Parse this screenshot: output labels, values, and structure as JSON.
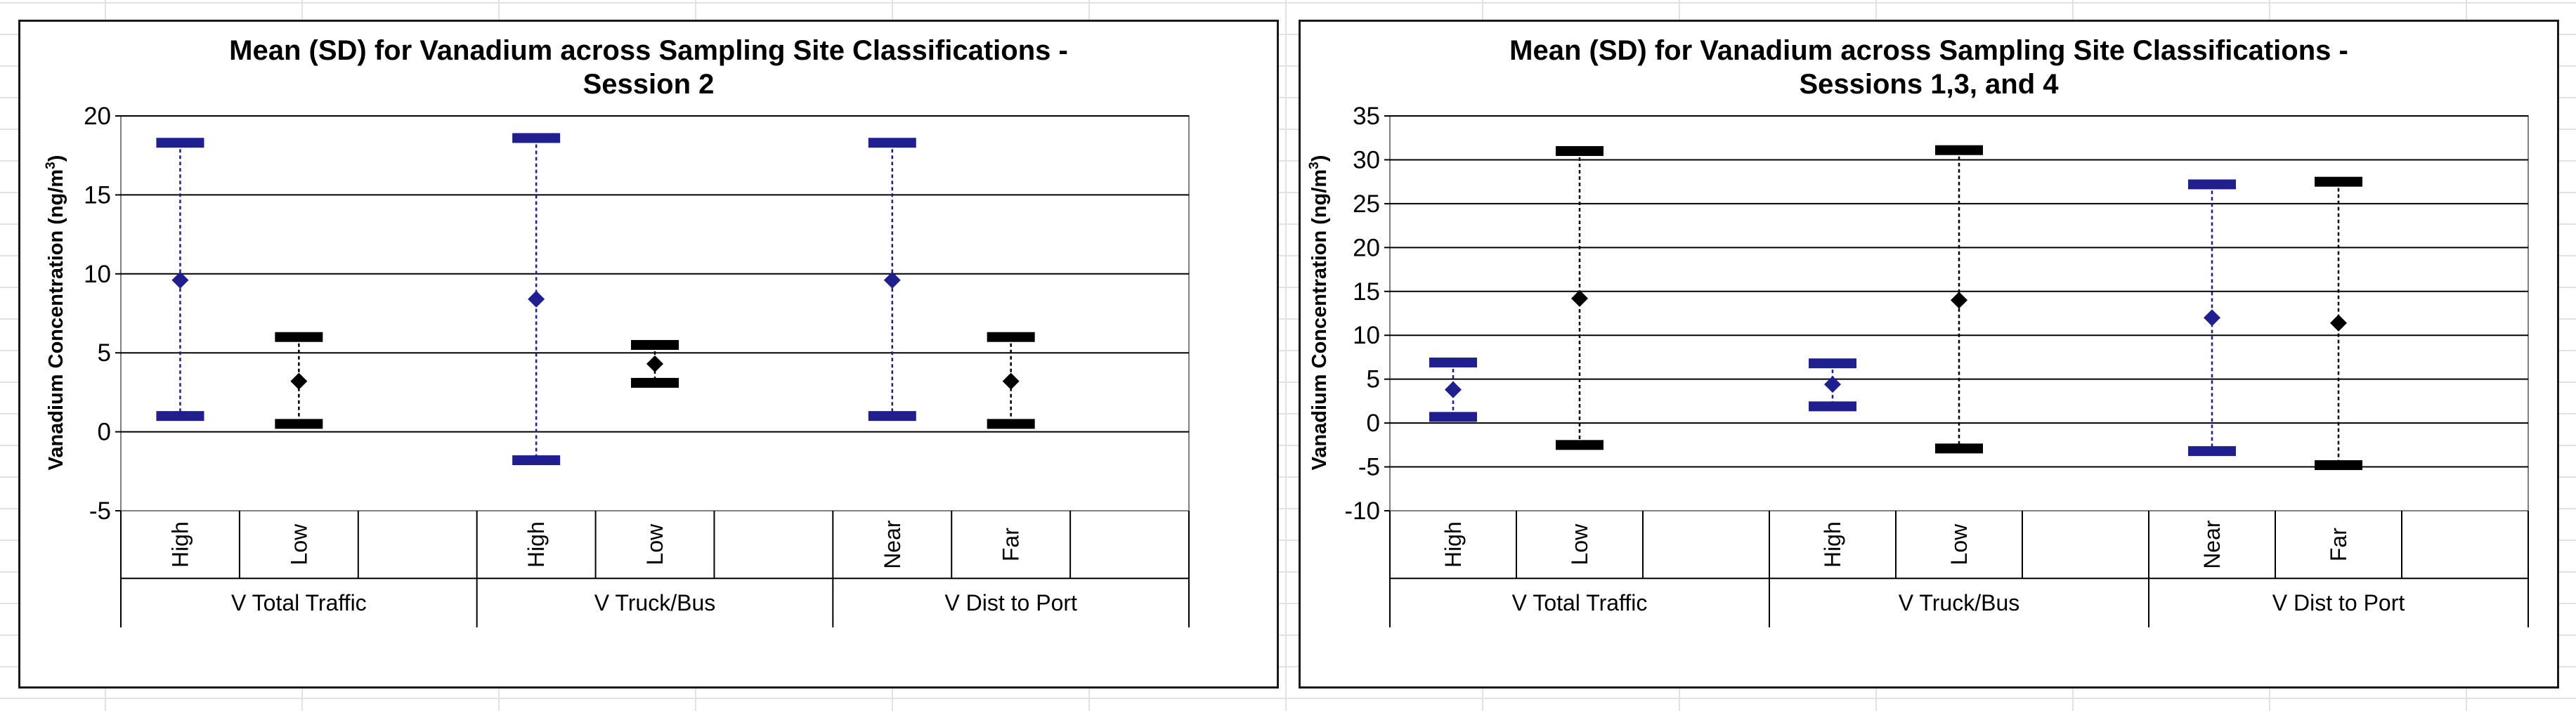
{
  "colors": {
    "high_group": "#1f1f8f",
    "low_group": "#000000",
    "gridline": "#000000",
    "sheet_grid": "#e2e2e2"
  },
  "chart_data": [
    {
      "type": "scatter",
      "title": "Mean (SD) for Vanadium across Sampling Site Classifications - Session 2",
      "title_lines": [
        "Mean (SD) for Vanadium across Sampling Site Classifications -",
        "Session 2"
      ],
      "ylabel": "Vanadium Concentration (ng/m",
      "ylabel_sup": "3",
      "ylabel_end": ")",
      "ylim": [
        -5,
        20
      ],
      "yticks": [
        -5,
        0,
        5,
        10,
        15,
        20
      ],
      "ytick_labels": [
        "-5",
        "0",
        "5",
        "10",
        "15",
        "20"
      ],
      "groups": [
        {
          "label": "V Total Traffic",
          "categories": [
            {
              "label": "High",
              "mean": 9.6,
              "low": 1.0,
              "high": 18.3,
              "color": "#1f1f8f"
            },
            {
              "label": "Low",
              "mean": 3.2,
              "low": 0.5,
              "high": 6.0,
              "color": "#000000"
            },
            {
              "label": "",
              "mean": null,
              "low": null,
              "high": null,
              "color": ""
            }
          ]
        },
        {
          "label": "V Truck/Bus",
          "categories": [
            {
              "label": "High",
              "mean": 8.4,
              "low": -1.8,
              "high": 18.6,
              "color": "#1f1f8f"
            },
            {
              "label": "Low",
              "mean": 4.3,
              "low": 3.1,
              "high": 5.5,
              "color": "#000000"
            },
            {
              "label": "",
              "mean": null,
              "low": null,
              "high": null,
              "color": ""
            }
          ]
        },
        {
          "label": "V Dist to Port",
          "categories": [
            {
              "label": "Near",
              "mean": 9.6,
              "low": 1.0,
              "high": 18.3,
              "color": "#1f1f8f"
            },
            {
              "label": "Far",
              "mean": 3.2,
              "low": 0.5,
              "high": 6.0,
              "color": "#000000"
            },
            {
              "label": "",
              "mean": null,
              "low": null,
              "high": null,
              "color": ""
            }
          ]
        }
      ]
    },
    {
      "type": "scatter",
      "title": "Mean (SD) for Vanadium across Sampling Site Classifications - Sessions 1,3, and 4",
      "title_lines": [
        "Mean (SD) for Vanadium across Sampling Site Classifications -",
        "Sessions 1,3, and 4"
      ],
      "ylabel": "Vanadium Concentration (ng/m",
      "ylabel_sup": "3",
      "ylabel_end": ")",
      "ylim": [
        -10,
        35
      ],
      "yticks": [
        -10,
        -5,
        0,
        5,
        10,
        15,
        20,
        25,
        30,
        35
      ],
      "ytick_labels": [
        "-10",
        "-5",
        "0",
        "5",
        "10",
        "15",
        "20",
        "25",
        "30",
        "35"
      ],
      "groups": [
        {
          "label": "V Total Traffic",
          "categories": [
            {
              "label": "High",
              "mean": 3.8,
              "low": 0.7,
              "high": 6.9,
              "color": "#1f1f8f"
            },
            {
              "label": "Low",
              "mean": 14.2,
              "low": -2.5,
              "high": 31.0,
              "color": "#000000"
            },
            {
              "label": "",
              "mean": null,
              "low": null,
              "high": null,
              "color": ""
            }
          ]
        },
        {
          "label": "V Truck/Bus",
          "categories": [
            {
              "label": "High",
              "mean": 4.4,
              "low": 1.9,
              "high": 6.8,
              "color": "#1f1f8f"
            },
            {
              "label": "Low",
              "mean": 14.0,
              "low": -2.9,
              "high": 31.1,
              "color": "#000000"
            },
            {
              "label": "",
              "mean": null,
              "low": null,
              "high": null,
              "color": ""
            }
          ]
        },
        {
          "label": "V Dist to Port",
          "categories": [
            {
              "label": "Near",
              "mean": 12.0,
              "low": -3.2,
              "high": 27.2,
              "color": "#1f1f8f"
            },
            {
              "label": "Far",
              "mean": 11.4,
              "low": -4.8,
              "high": 27.5,
              "color": "#000000"
            },
            {
              "label": "",
              "mean": null,
              "low": null,
              "high": null,
              "color": ""
            }
          ]
        }
      ]
    }
  ]
}
